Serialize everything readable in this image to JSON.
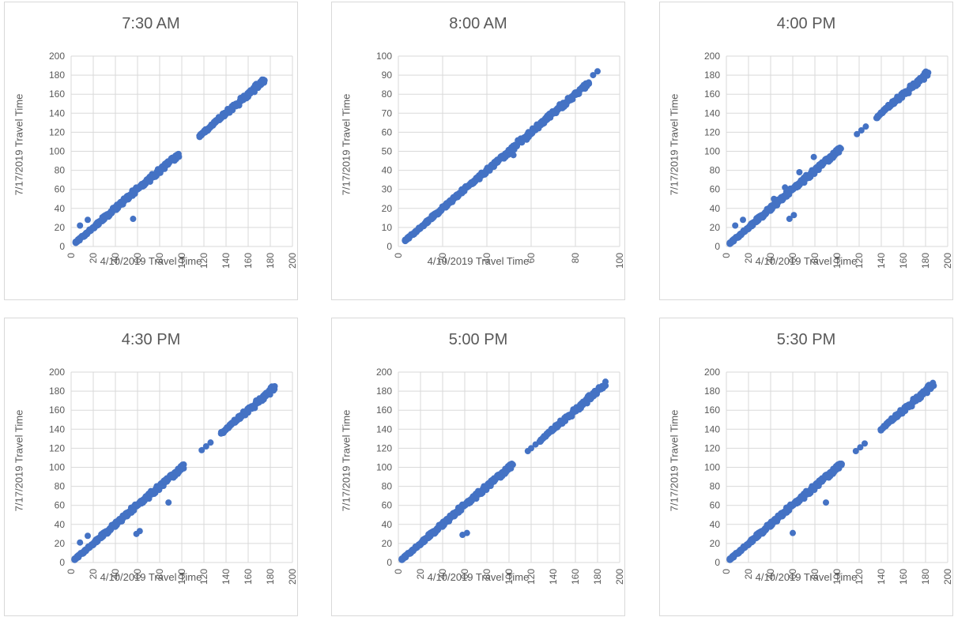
{
  "chart_data": [
    {
      "type": "scatter",
      "title": "7:30 AM",
      "xlabel": "4/10/2019 Travel Time",
      "ylabel": "7/17/2019 Travel Time",
      "xlim": [
        0,
        200
      ],
      "ylim": [
        0,
        200
      ],
      "xticks": [
        0,
        20,
        40,
        60,
        80,
        100,
        120,
        140,
        160,
        180,
        200
      ],
      "yticks": [
        0,
        20,
        40,
        60,
        80,
        100,
        120,
        140,
        160,
        180,
        200
      ],
      "grid": true,
      "color": "#4472c4",
      "series": [
        {
          "segments": [
            [
              4,
              97
            ],
            [
              116,
              175
            ]
          ],
          "points": [
            [
              8,
              22
            ],
            [
              15,
              28
            ],
            [
              56,
              29
            ]
          ]
        }
      ]
    },
    {
      "type": "scatter",
      "title": "8:00 AM",
      "xlabel": "4/10/2019 Travel Time",
      "ylabel": "7/17/2019 Travel Time",
      "xlim": [
        0,
        100
      ],
      "ylim": [
        0,
        100
      ],
      "xticks": [
        0,
        20,
        40,
        60,
        80,
        100
      ],
      "yticks": [
        0,
        10,
        20,
        30,
        40,
        50,
        60,
        70,
        80,
        90,
        100
      ],
      "grid": true,
      "color": "#4472c4",
      "series": [
        {
          "segments": [
            [
              3,
              86
            ]
          ],
          "points": [
            [
              88,
              90
            ],
            [
              90,
              92
            ],
            [
              52,
              48
            ]
          ]
        }
      ]
    },
    {
      "type": "scatter",
      "title": "4:00 PM",
      "xlabel": "4/10/2019 Travel Time",
      "ylabel": "7/17/2019 Travel Time",
      "xlim": [
        0,
        200
      ],
      "ylim": [
        0,
        200
      ],
      "xticks": [
        0,
        20,
        40,
        60,
        80,
        100,
        120,
        140,
        160,
        180,
        200
      ],
      "yticks": [
        0,
        20,
        40,
        60,
        80,
        100,
        120,
        140,
        160,
        180,
        200
      ],
      "grid": true,
      "color": "#4472c4",
      "series": [
        {
          "segments": [
            [
              3,
              103
            ],
            [
              136,
              182
            ]
          ],
          "points": [
            [
              8,
              22
            ],
            [
              15,
              28
            ],
            [
              57,
              29
            ],
            [
              61,
              33
            ],
            [
              118,
              118
            ],
            [
              122,
              122
            ],
            [
              126,
              126
            ],
            [
              43,
              50
            ],
            [
              53,
              62
            ],
            [
              66,
              78
            ],
            [
              79,
              94
            ]
          ]
        }
      ]
    },
    {
      "type": "scatter",
      "title": "4:30 PM",
      "xlabel": "4/10/2019 Travel Time",
      "ylabel": "7/17/2019 Travel Time",
      "xlim": [
        0,
        200
      ],
      "ylim": [
        0,
        200
      ],
      "xticks": [
        0,
        20,
        40,
        60,
        80,
        100,
        120,
        140,
        160,
        180,
        200
      ],
      "yticks": [
        0,
        20,
        40,
        60,
        80,
        100,
        120,
        140,
        160,
        180,
        200
      ],
      "grid": true,
      "color": "#4472c4",
      "series": [
        {
          "segments": [
            [
              3,
              102
            ],
            [
              136,
              185
            ]
          ],
          "points": [
            [
              8,
              21
            ],
            [
              15,
              28
            ],
            [
              59,
              30
            ],
            [
              62,
              33
            ],
            [
              88,
              63
            ],
            [
              118,
              118
            ],
            [
              122,
              122
            ],
            [
              126,
              126
            ]
          ]
        }
      ]
    },
    {
      "type": "scatter",
      "title": "5:00 PM",
      "xlabel": "4/10/2019 Travel Time",
      "ylabel": "7/17/2019 Travel Time",
      "xlim": [
        0,
        200
      ],
      "ylim": [
        0,
        200
      ],
      "xticks": [
        0,
        20,
        40,
        60,
        80,
        100,
        120,
        140,
        160,
        180,
        200
      ],
      "yticks": [
        0,
        20,
        40,
        60,
        80,
        100,
        120,
        140,
        160,
        180,
        200
      ],
      "grid": true,
      "color": "#4472c4",
      "series": [
        {
          "segments": [
            [
              3,
              104
            ],
            [
              128,
              187
            ]
          ],
          "points": [
            [
              58,
              29
            ],
            [
              62,
              31
            ],
            [
              117,
              117
            ],
            [
              120,
              120
            ],
            [
              124,
              124
            ]
          ]
        }
      ]
    },
    {
      "type": "scatter",
      "title": "5:30 PM",
      "xlabel": "4/10/2019 Travel Time",
      "ylabel": "7/17/2019 Travel Time",
      "xlim": [
        0,
        200
      ],
      "ylim": [
        0,
        200
      ],
      "xticks": [
        0,
        20,
        40,
        60,
        80,
        100,
        120,
        140,
        160,
        180,
        200
      ],
      "yticks": [
        0,
        20,
        40,
        60,
        80,
        100,
        120,
        140,
        160,
        180,
        200
      ],
      "grid": true,
      "color": "#4472c4",
      "series": [
        {
          "segments": [
            [
              3,
              105
            ],
            [
              140,
              188
            ]
          ],
          "points": [
            [
              60,
              31
            ],
            [
              90,
              63
            ],
            [
              117,
              117
            ],
            [
              121,
              121
            ],
            [
              125,
              125
            ]
          ]
        }
      ]
    }
  ]
}
